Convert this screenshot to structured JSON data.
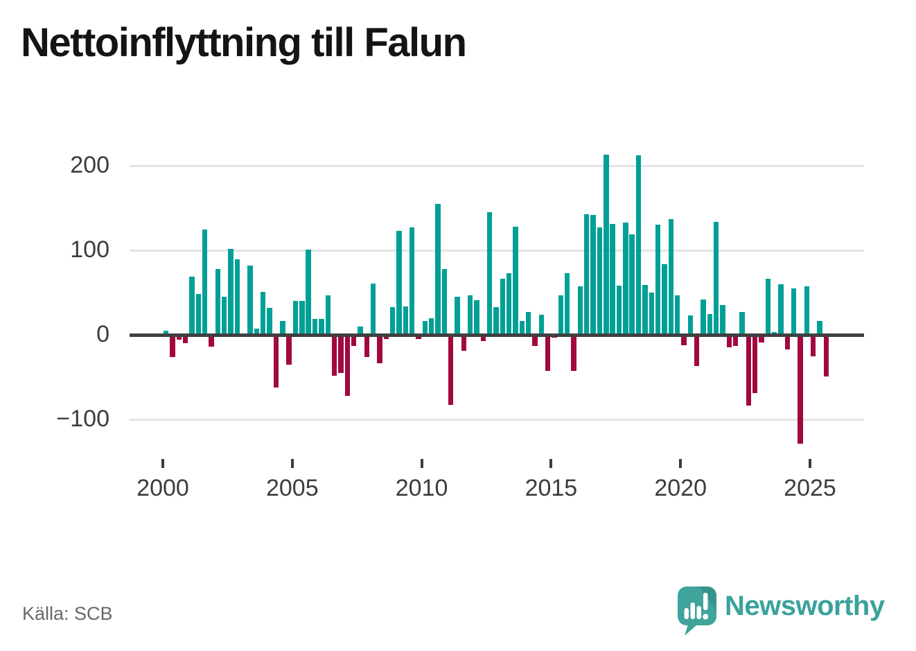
{
  "title": "Nettoinflyttning till Falun",
  "source": "Källa: SCB",
  "branding": {
    "name": "Newsworthy",
    "icon": "newsworthy-speech-bubble-bar-chart-icon"
  },
  "colors": {
    "positive": "#00a096",
    "negative": "#a30742",
    "axis": "#3e4042",
    "grid": "#e4e4e5",
    "tick_label": "#3c3c3c",
    "title": "#141414",
    "source_text": "#66696e",
    "brand": "#3aa29a",
    "brand_icon": "#3fa49c",
    "brand_icon_fold": "#35948d"
  },
  "chart_data": {
    "type": "bar",
    "title": "Nettoinflyttning till Falun",
    "frequency": "quarterly",
    "start_period": "2000 Q1",
    "end_period": "2025 Q3",
    "xlabel": "",
    "ylabel": "",
    "grid": true,
    "legend": "none",
    "ylim": [
      -145,
      235
    ],
    "y_ticks": [
      200,
      100,
      0,
      -100
    ],
    "y_tick_labels": [
      "200",
      "100",
      "0",
      "−100"
    ],
    "x_ticks": [
      2000,
      2005,
      2010,
      2015,
      2020,
      2025
    ],
    "x_tick_labels": [
      "2000",
      "2005",
      "2010",
      "2015",
      "2020",
      "2025"
    ],
    "years": [
      {
        "year": 2000,
        "values": [
          5,
          -26,
          -6,
          -10
        ]
      },
      {
        "year": 2001,
        "values": [
          69,
          48,
          125,
          -14
        ]
      },
      {
        "year": 2002,
        "values": [
          78,
          45,
          102,
          89
        ]
      },
      {
        "year": 2003,
        "values": [
          0,
          82,
          7,
          51
        ]
      },
      {
        "year": 2004,
        "values": [
          32,
          -62,
          16,
          -35
        ]
      },
      {
        "year": 2005,
        "values": [
          40,
          40,
          101,
          19
        ]
      },
      {
        "year": 2006,
        "values": [
          19,
          47,
          -48,
          -45
        ]
      },
      {
        "year": 2007,
        "values": [
          -72,
          -13,
          10,
          -26
        ]
      },
      {
        "year": 2008,
        "values": [
          61,
          -34,
          -5,
          33
        ]
      },
      {
        "year": 2009,
        "values": [
          123,
          34,
          127,
          -5
        ]
      },
      {
        "year": 2010,
        "values": [
          16,
          20,
          155,
          78
        ]
      },
      {
        "year": 2011,
        "values": [
          -83,
          45,
          -19,
          47
        ]
      },
      {
        "year": 2012,
        "values": [
          41,
          -7,
          145,
          33
        ]
      },
      {
        "year": 2013,
        "values": [
          66,
          73,
          128,
          16
        ]
      },
      {
        "year": 2014,
        "values": [
          27,
          -13,
          24,
          -43
        ]
      },
      {
        "year": 2015,
        "values": [
          -3,
          47,
          73,
          -43
        ]
      },
      {
        "year": 2016,
        "values": [
          57,
          143,
          142,
          127
        ]
      },
      {
        "year": 2017,
        "values": [
          213,
          131,
          58,
          133
        ]
      },
      {
        "year": 2018,
        "values": [
          119,
          212,
          59,
          50
        ]
      },
      {
        "year": 2019,
        "values": [
          130,
          84,
          137,
          47
        ]
      },
      {
        "year": 2020,
        "values": [
          -12,
          23,
          -37,
          42
        ]
      },
      {
        "year": 2021,
        "values": [
          25,
          134,
          35,
          -15
        ]
      },
      {
        "year": 2022,
        "values": [
          -13,
          27,
          -84,
          -69
        ]
      },
      {
        "year": 2023,
        "values": [
          -9,
          66,
          3,
          60
        ]
      },
      {
        "year": 2024,
        "values": [
          -17,
          55,
          -129,
          57
        ]
      },
      {
        "year": 2025,
        "values": [
          -25,
          16,
          -49
        ]
      }
    ]
  }
}
